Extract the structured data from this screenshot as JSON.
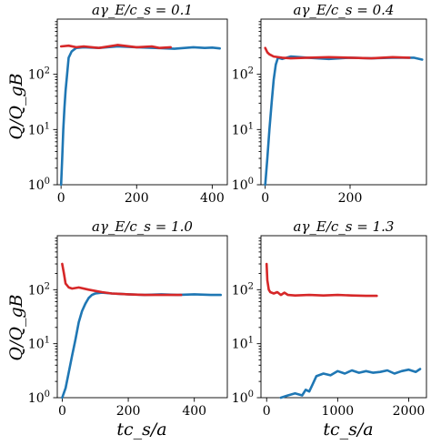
{
  "figure": {
    "ylabel": "Q/Q_gB",
    "xlabel": "tc_s/a"
  },
  "chart_data": [
    {
      "type": "line",
      "title": "aγ_E/c_s = 0.1",
      "yscale": "log",
      "ylim": [
        1,
        1000
      ],
      "xlim": [
        -10,
        440
      ],
      "xticks": [
        0,
        200,
        400
      ],
      "yticks": [
        1,
        10,
        100
      ],
      "series": [
        {
          "color": "#1f77b4",
          "x": [
            0,
            3,
            6,
            9,
            12,
            16,
            20,
            28,
            40,
            60,
            100,
            150,
            200,
            250,
            300,
            350,
            380,
            400,
            420
          ],
          "y": [
            1,
            3,
            10,
            25,
            50,
            100,
            200,
            260,
            300,
            310,
            300,
            320,
            310,
            300,
            290,
            310,
            300,
            305,
            295
          ]
        },
        {
          "color": "#d62728",
          "x": [
            0,
            20,
            40,
            60,
            100,
            150,
            200,
            240,
            260,
            290
          ],
          "y": [
            320,
            330,
            310,
            320,
            300,
            340,
            310,
            320,
            300,
            310
          ]
        }
      ]
    },
    {
      "type": "line",
      "title": "aγ_E/c_s = 0.4",
      "yscale": "log",
      "ylim": [
        1,
        1000
      ],
      "xlim": [
        -10,
        380
      ],
      "xticks": [
        0,
        200
      ],
      "yticks": [
        1,
        10,
        100
      ],
      "series": [
        {
          "color": "#1f77b4",
          "x": [
            0,
            5,
            10,
            15,
            20,
            25,
            30,
            40,
            60,
            100,
            150,
            200,
            250,
            300,
            350,
            370
          ],
          "y": [
            1,
            3,
            10,
            30,
            80,
            150,
            200,
            190,
            210,
            200,
            190,
            200,
            195,
            200,
            200,
            185
          ]
        },
        {
          "color": "#d62728",
          "x": [
            0,
            5,
            10,
            20,
            40,
            60,
            100,
            150,
            200,
            250,
            300,
            340
          ],
          "y": [
            300,
            250,
            230,
            210,
            200,
            195,
            200,
            205,
            200,
            195,
            205,
            200
          ]
        }
      ]
    },
    {
      "type": "line",
      "title": "aγ_E/c_s = 1.0",
      "yscale": "log",
      "ylim": [
        1,
        1000
      ],
      "xlim": [
        -15,
        500
      ],
      "xticks": [
        0,
        200,
        400
      ],
      "yticks": [
        1,
        10,
        100
      ],
      "series": [
        {
          "color": "#1f77b4",
          "x": [
            0,
            10,
            20,
            30,
            40,
            50,
            60,
            70,
            80,
            90,
            100,
            120,
            150,
            200,
            250,
            300,
            350,
            400,
            450,
            480
          ],
          "y": [
            1,
            1.5,
            3,
            6,
            12,
            25,
            40,
            55,
            70,
            80,
            85,
            88,
            85,
            82,
            80,
            82,
            80,
            82,
            80,
            80
          ]
        },
        {
          "color": "#d62728",
          "x": [
            0,
            5,
            10,
            20,
            30,
            50,
            80,
            100,
            120,
            150,
            200,
            250,
            300,
            360
          ],
          "y": [
            300,
            200,
            130,
            110,
            105,
            110,
            100,
            95,
            90,
            85,
            82,
            80,
            80,
            80
          ]
        }
      ]
    },
    {
      "type": "line",
      "title": "aγ_E/c_s = 1.3",
      "yscale": "log",
      "ylim": [
        1,
        1000
      ],
      "xlim": [
        -80,
        2250
      ],
      "xticks": [
        0,
        1000,
        2000
      ],
      "yticks": [
        1,
        10,
        100
      ],
      "series": [
        {
          "color": "#1f77b4",
          "x": [
            200,
            300,
            400,
            500,
            550,
            600,
            650,
            700,
            800,
            900,
            1000,
            1100,
            1200,
            1300,
            1400,
            1500,
            1600,
            1700,
            1800,
            1900,
            2000,
            2100,
            2160
          ],
          "y": [
            1,
            1.1,
            1.2,
            1.1,
            1.4,
            1.3,
            1.8,
            2.5,
            2.8,
            2.6,
            3.1,
            2.8,
            3.2,
            2.9,
            3.1,
            2.9,
            3.0,
            3.2,
            2.8,
            3.1,
            3.3,
            3.0,
            3.4
          ]
        },
        {
          "color": "#d62728",
          "x": [
            0,
            10,
            30,
            50,
            100,
            150,
            200,
            250,
            300,
            400,
            600,
            800,
            1000,
            1200,
            1400,
            1550
          ],
          "y": [
            300,
            150,
            100,
            90,
            85,
            90,
            80,
            88,
            80,
            78,
            80,
            78,
            80,
            78,
            77,
            77
          ]
        }
      ]
    }
  ]
}
